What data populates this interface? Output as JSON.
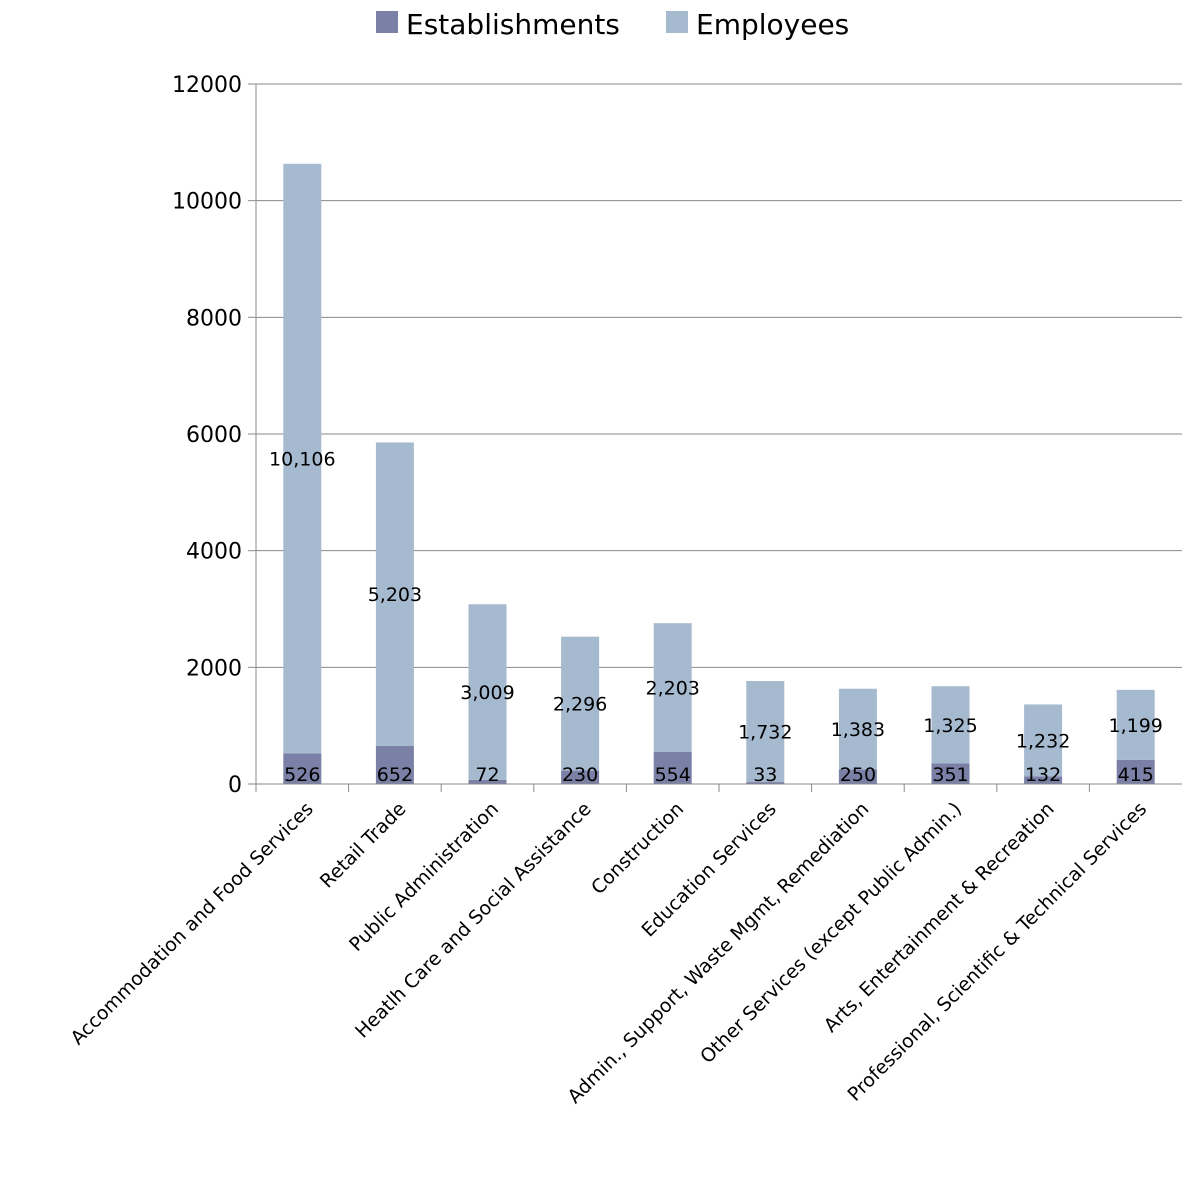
{
  "chart_data": {
    "type": "bar",
    "stacked": true,
    "categories": [
      "Accommodation and Food Services",
      "Retail Trade",
      "Public Administration",
      "Heatlh Care and Social Assistance",
      "Construction",
      "Education Services",
      "Admin., Support, Waste Mgmt, Remediation",
      "Other Services (except Public Admin.)",
      "Arts, Entertainment & Recreation",
      "Professional, Scientific & Technical Services"
    ],
    "series": [
      {
        "name": "Establishments",
        "color": "#7b80a6",
        "values": [
          526,
          652,
          72,
          230,
          554,
          33,
          250,
          351,
          132,
          415
        ],
        "labels": [
          "526",
          "652",
          "72",
          "230",
          "554",
          "33",
          "250",
          "351",
          "132",
          "415"
        ]
      },
      {
        "name": "Employees",
        "color": "#a5b9cf",
        "values": [
          10106,
          5203,
          3009,
          2296,
          2203,
          1732,
          1383,
          1325,
          1232,
          1199
        ],
        "labels": [
          "10,106",
          "5,203",
          "3,009",
          "2,296",
          "2,203",
          "1,732",
          "1,383",
          "1,325",
          "1,232",
          "1,199"
        ]
      }
    ],
    "y_ticks": [
      "0",
      "2000",
      "4000",
      "6000",
      "8000",
      "10000",
      "12000"
    ],
    "ylim": [
      0,
      12000
    ],
    "grid": true,
    "legend_position": "top-center",
    "title": "",
    "xlabel": "",
    "ylabel": ""
  }
}
